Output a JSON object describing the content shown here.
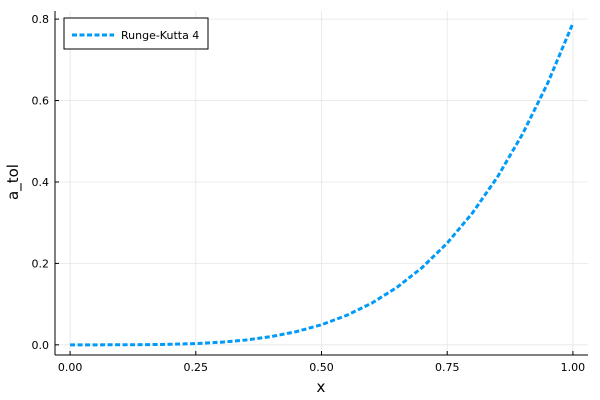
{
  "chart_data": {
    "type": "line",
    "xlabel": "x",
    "ylabel": "a_tol",
    "xlim": [
      -0.03,
      1.03
    ],
    "ylim": [
      -0.025,
      0.82
    ],
    "xticks": [
      0.0,
      0.25,
      0.5,
      0.75,
      1.0
    ],
    "xtick_labels": [
      "0.00",
      "0.25",
      "0.50",
      "0.75",
      "1.00"
    ],
    "yticks": [
      0.0,
      0.2,
      0.4,
      0.6,
      0.8
    ],
    "ytick_labels": [
      "0.0",
      "0.2",
      "0.4",
      "0.6",
      "0.8"
    ],
    "grid": true,
    "legend_position": "top-left",
    "series": [
      {
        "name": "Runge-Kutta 4",
        "color": "#009af9",
        "line_style": "dashed",
        "x": [
          0.0,
          0.05,
          0.1,
          0.15,
          0.2,
          0.25,
          0.3,
          0.35,
          0.4,
          0.45,
          0.5,
          0.55,
          0.6,
          0.65,
          0.7,
          0.75,
          0.8,
          0.85,
          0.9,
          0.95,
          1.0
        ],
        "y": [
          0.0,
          4.9e-06,
          7.9e-05,
          0.0004,
          0.00126,
          0.00309,
          0.0064,
          0.01186,
          0.02023,
          0.0324,
          0.04938,
          0.0723,
          0.10238,
          0.14102,
          0.18966,
          0.24997,
          0.32358,
          0.41233,
          0.51819,
          0.64308,
          0.79
        ]
      }
    ]
  }
}
